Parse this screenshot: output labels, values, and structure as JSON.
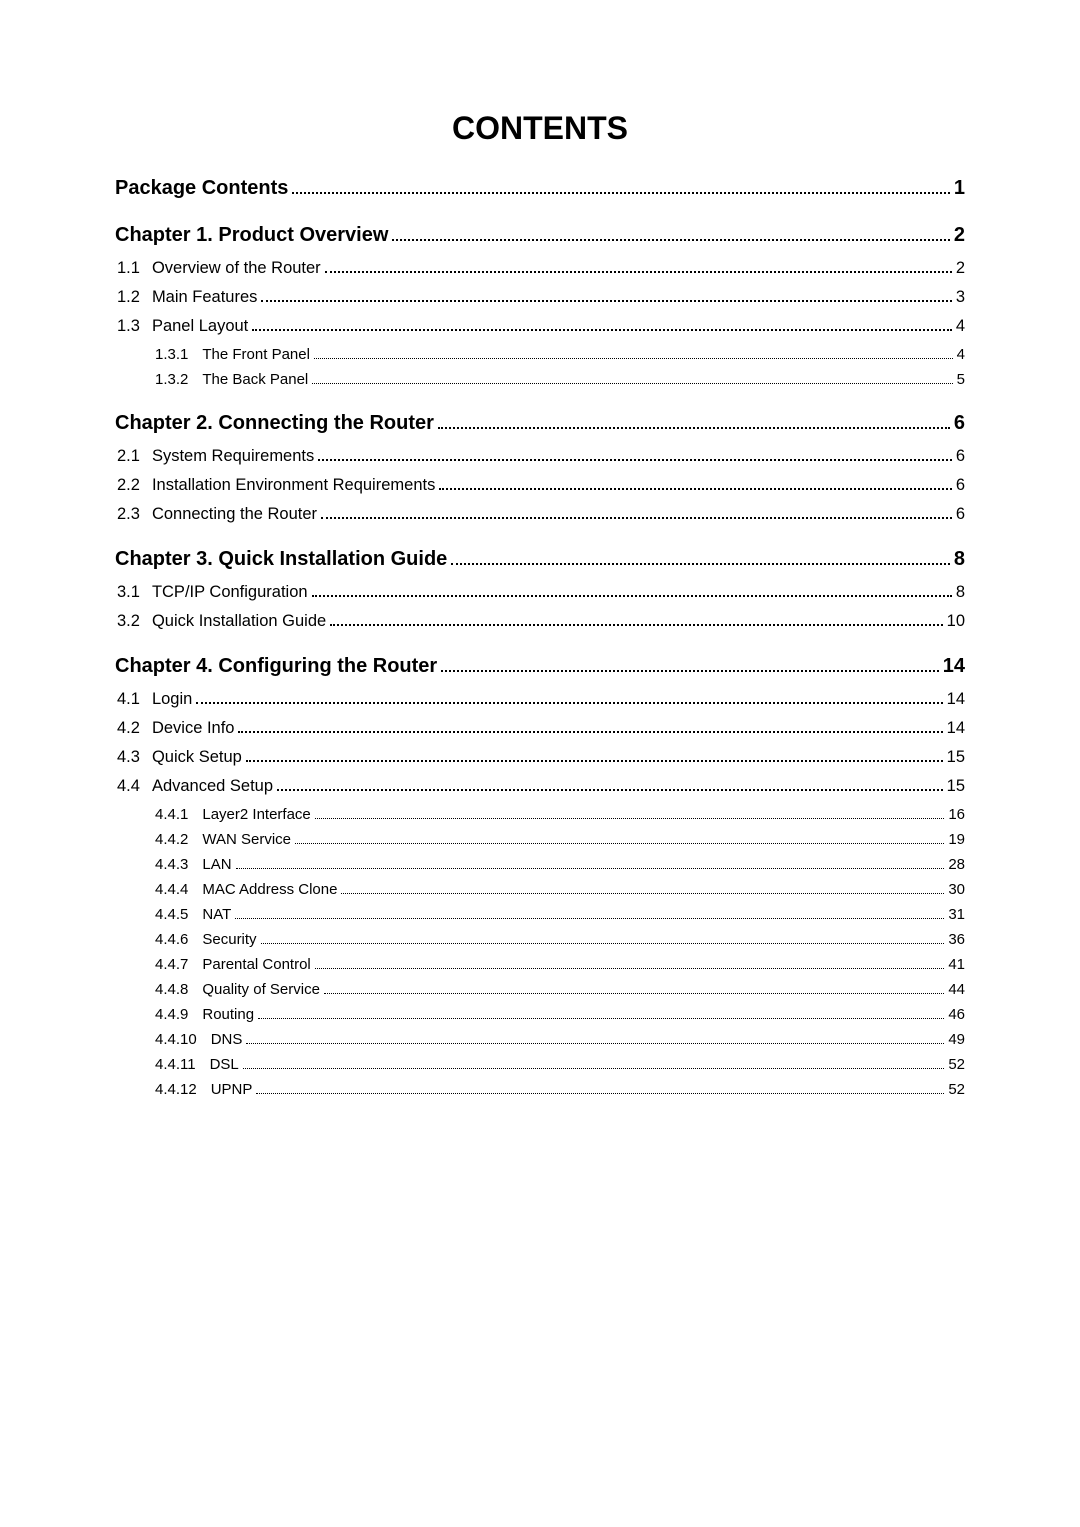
{
  "title": "CONTENTS",
  "typography": {
    "font_family": "Arial",
    "title_fontsize_pt": 24,
    "l1_fontsize_pt": 15,
    "l2_fontsize_pt": 12,
    "l3_fontsize_pt": 11,
    "text_color": "#000000",
    "background_color": "#ffffff",
    "dot_leader_color": "#000000"
  },
  "toc": [
    {
      "level": 1,
      "num": "",
      "label": "Package Contents",
      "page": "1"
    },
    {
      "level": 1,
      "num": "",
      "label": "Chapter 1. Product Overview",
      "page": "2"
    },
    {
      "level": 2,
      "num": "1.1",
      "label": "Overview of the Router",
      "page": "2"
    },
    {
      "level": 2,
      "num": "1.2",
      "label": "Main Features",
      "page": "3"
    },
    {
      "level": 2,
      "num": "1.3",
      "label": "Panel Layout",
      "page": "4"
    },
    {
      "level": 3,
      "num": "1.3.1",
      "label": "The Front Panel",
      "page": "4"
    },
    {
      "level": 3,
      "num": "1.3.2",
      "label": "The Back Panel",
      "page": "5"
    },
    {
      "level": 1,
      "num": "",
      "label": "Chapter 2. Connecting the Router",
      "page": "6"
    },
    {
      "level": 2,
      "num": "2.1",
      "label": "System Requirements",
      "page": "6"
    },
    {
      "level": 2,
      "num": "2.2",
      "label": "Installation Environment Requirements",
      "page": "6"
    },
    {
      "level": 2,
      "num": "2.3",
      "label": "Connecting the Router",
      "page": "6"
    },
    {
      "level": 1,
      "num": "",
      "label": "Chapter 3. Quick Installation Guide",
      "page": "8"
    },
    {
      "level": 2,
      "num": "3.1",
      "label": "TCP/IP Configuration",
      "page": "8"
    },
    {
      "level": 2,
      "num": "3.2",
      "label": "Quick Installation Guide",
      "page": "10"
    },
    {
      "level": 1,
      "num": "",
      "label": "Chapter 4. Configuring the Router",
      "page": "14"
    },
    {
      "level": 2,
      "num": "4.1",
      "label": "Login",
      "page": "14"
    },
    {
      "level": 2,
      "num": "4.2",
      "label": "Device Info",
      "page": "14"
    },
    {
      "level": 2,
      "num": "4.3",
      "label": "Quick Setup",
      "page": "15"
    },
    {
      "level": 2,
      "num": "4.4",
      "label": "Advanced Setup",
      "page": "15"
    },
    {
      "level": 3,
      "num": "4.4.1",
      "label": "Layer2 Interface",
      "page": "16"
    },
    {
      "level": 3,
      "num": "4.4.2",
      "label": "WAN Service",
      "page": "19"
    },
    {
      "level": 3,
      "num": "4.4.3",
      "label": "LAN",
      "page": "28"
    },
    {
      "level": 3,
      "num": "4.4.4",
      "label": "MAC Address Clone",
      "page": "30"
    },
    {
      "level": 3,
      "num": "4.4.5",
      "label": "NAT",
      "page": "31"
    },
    {
      "level": 3,
      "num": "4.4.6",
      "label": "Security",
      "page": "36"
    },
    {
      "level": 3,
      "num": "4.4.7",
      "label": "Parental Control",
      "page": "41"
    },
    {
      "level": 3,
      "num": "4.4.8",
      "label": "Quality of Service",
      "page": "44"
    },
    {
      "level": 3,
      "num": "4.4.9",
      "label": "Routing",
      "page": "46"
    },
    {
      "level": 3,
      "num": "4.4.10",
      "label": "DNS",
      "page": "49"
    },
    {
      "level": 3,
      "num": "4.4.11",
      "label": "DSL",
      "page": "52"
    },
    {
      "level": 3,
      "num": "4.4.12",
      "label": "UPNP",
      "page": "52"
    }
  ]
}
